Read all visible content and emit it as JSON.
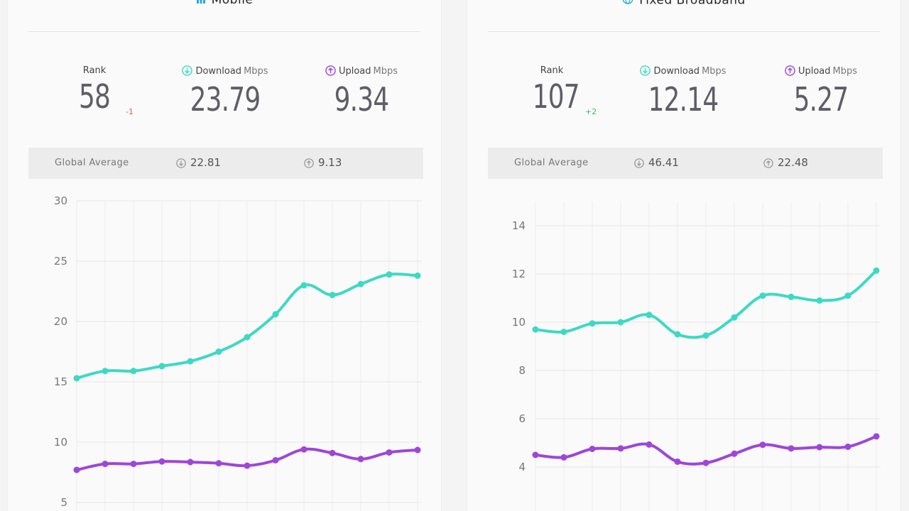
{
  "colors": {
    "download": "#3dd9c4",
    "upload": "#9f45d9",
    "rank_down": "#e05a5a",
    "rank_up": "#3cbf5e"
  },
  "mobile": {
    "title": "Mobile",
    "icon": "signal-bars-icon",
    "rank_label": "Rank",
    "rank": "58",
    "rank_change": "-1",
    "download_label": "Download",
    "download_unit": "Mbps",
    "download": "23.79",
    "upload_label": "Upload",
    "upload_unit": "Mbps",
    "upload": "9.34",
    "global_avg_label": "Global Average",
    "global_download": "22.81",
    "global_upload": "9.13"
  },
  "fixed": {
    "title": "Fixed Broadband",
    "icon": "globe-icon",
    "rank_label": "Rank",
    "rank": "107",
    "rank_change": "+2",
    "download_label": "Download",
    "download_unit": "Mbps",
    "download": "12.14",
    "upload_label": "Upload",
    "upload_unit": "Mbps",
    "upload": "5.27",
    "global_avg_label": "Global Average",
    "global_download": "46.41",
    "global_upload": "22.48"
  },
  "chart_data": [
    {
      "type": "line",
      "ylim": [
        5,
        30
      ],
      "yticks": [
        5,
        10,
        15,
        20,
        25,
        30
      ],
      "grid": true,
      "series": [
        {
          "values": [
            15.3,
            15.9,
            15.9,
            16.3,
            16.7,
            17.5,
            18.7,
            20.6,
            23.0,
            22.2,
            23.1,
            23.9,
            23.8
          ]
        },
        {
          "values": [
            7.7,
            8.2,
            8.2,
            8.4,
            8.35,
            8.25,
            8.05,
            8.5,
            9.4,
            9.1,
            8.6,
            9.15,
            9.35
          ]
        }
      ]
    },
    {
      "type": "line",
      "ylim": [
        2,
        16
      ],
      "yticks": [
        4,
        6,
        8,
        10,
        12,
        14
      ],
      "grid": true,
      "series": [
        {
          "values": [
            9.7,
            9.6,
            9.95,
            10.0,
            10.3,
            9.5,
            9.45,
            10.2,
            11.1,
            11.05,
            10.9,
            11.1,
            12.14
          ]
        },
        {
          "values": [
            4.5,
            4.4,
            4.75,
            4.77,
            4.93,
            4.22,
            4.17,
            4.55,
            4.92,
            4.77,
            4.82,
            4.84,
            5.27
          ]
        }
      ]
    }
  ]
}
